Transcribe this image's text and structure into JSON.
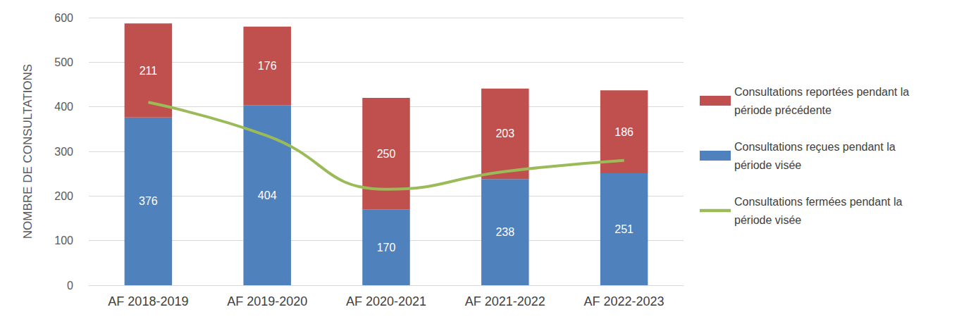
{
  "chart_data": {
    "type": "bar",
    "stacked": true,
    "grid": true,
    "legend": "right",
    "y_label": "NOMBRE DE CONSULTATIONS",
    "categories": [
      "AF 2018-2019",
      "AF 2019-2020",
      "AF 2020-2021",
      "AF 2021-2022",
      "AF 2022-2023"
    ],
    "ylim": [
      0,
      600
    ],
    "yticks": [
      0,
      100,
      200,
      300,
      400,
      500,
      600
    ],
    "series": [
      {
        "name": "Consultations reçues pendant la période visée",
        "type": "bar",
        "color": "#4f81bd",
        "data_labels": true,
        "values": [
          376,
          404,
          170,
          238,
          251
        ]
      },
      {
        "name": "Consultations reportées pendant la période précédente",
        "type": "bar",
        "color": "#c0504d",
        "data_labels": true,
        "values": [
          211,
          176,
          250,
          203,
          186
        ]
      },
      {
        "name": "Consultations fermées pendant la période visée",
        "type": "line",
        "color": "#9bbb59",
        "data_labels": false,
        "marker": "none",
        "line_style": "solid",
        "values": [
          410,
          335,
          215,
          255,
          280
        ]
      }
    ]
  }
}
